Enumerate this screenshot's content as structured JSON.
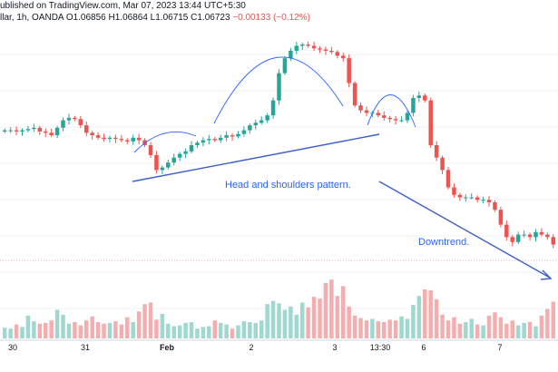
{
  "header": {
    "publisher": "ublished on TradingView.com, Mar 07, 2023 13:44 UTC+5:30",
    "symbol": "llar, 1h, OANDA",
    "ohlc": "O1.06856  H1.06864  L1.06715  C1.06723",
    "change": "−0.00133 (−0.12%)"
  },
  "annotations": {
    "pattern": "Head and shoulders pattern.",
    "trend": "Downtrend."
  },
  "colors": {
    "up": "#26a69a",
    "down": "#ef5350",
    "up_volume": "#9ed8d0",
    "down_volume": "#f5aeb0",
    "drawing": "#2962ff",
    "grid": "#f0f3fa"
  },
  "chart_data": {
    "type": "candlestick",
    "x_ticks": [
      "30",
      "31",
      "Feb",
      "2",
      "3",
      "13:30",
      "6",
      "7"
    ],
    "close_series": [
      0.26,
      0.26,
      0.255,
      0.26,
      0.265,
      0.27,
      0.255,
      0.25,
      0.24,
      0.27,
      0.3,
      0.31,
      0.305,
      0.28,
      0.25,
      0.24,
      0.23,
      0.225,
      0.23,
      0.225,
      0.22,
      0.215,
      0.23,
      0.22,
      0.2,
      0.16,
      0.1,
      0.11,
      0.13,
      0.15,
      0.165,
      0.175,
      0.2,
      0.21,
      0.22,
      0.225,
      0.22,
      0.23,
      0.24,
      0.235,
      0.245,
      0.26,
      0.28,
      0.29,
      0.3,
      0.32,
      0.38,
      0.49,
      0.55,
      0.58,
      0.6,
      0.605,
      0.6,
      0.59,
      0.585,
      0.58,
      0.575,
      0.56,
      0.55,
      0.45,
      0.36,
      0.34,
      0.33,
      0.33,
      0.32,
      0.31,
      0.305,
      0.3,
      0.3,
      0.33,
      0.39,
      0.4,
      0.38,
      0.2,
      0.15,
      0.1,
      0.03,
      0.0,
      -0.01,
      -0.01,
      -0.01,
      -0.02,
      -0.02,
      -0.03,
      -0.06,
      -0.12,
      -0.17,
      -0.19,
      -0.16,
      -0.16,
      -0.17,
      -0.15,
      -0.16,
      -0.17,
      -0.2
    ],
    "volume": [
      0.13,
      0.12,
      0.17,
      0.14,
      0.28,
      0.21,
      0.18,
      0.19,
      0.22,
      0.35,
      0.29,
      0.18,
      0.2,
      0.16,
      0.22,
      0.27,
      0.2,
      0.18,
      0.19,
      0.21,
      0.17,
      0.26,
      0.2,
      0.33,
      0.42,
      0.44,
      0.23,
      0.3,
      0.18,
      0.15,
      0.16,
      0.19,
      0.2,
      0.12,
      0.14,
      0.15,
      0.22,
      0.19,
      0.17,
      0.12,
      0.16,
      0.21,
      0.2,
      0.19,
      0.22,
      0.42,
      0.46,
      0.43,
      0.35,
      0.39,
      0.29,
      0.44,
      0.38,
      0.51,
      0.49,
      0.68,
      0.72,
      0.52,
      0.64,
      0.39,
      0.28,
      0.25,
      0.22,
      0.24,
      0.21,
      0.2,
      0.23,
      0.22,
      0.27,
      0.24,
      0.41,
      0.52,
      0.6,
      0.59,
      0.48,
      0.29,
      0.22,
      0.26,
      0.18,
      0.2,
      0.24,
      0.17,
      0.16,
      0.28,
      0.32,
      0.26,
      0.18,
      0.22,
      0.16,
      0.19,
      0.2,
      0.15,
      0.28,
      0.36,
      0.45
    ]
  }
}
